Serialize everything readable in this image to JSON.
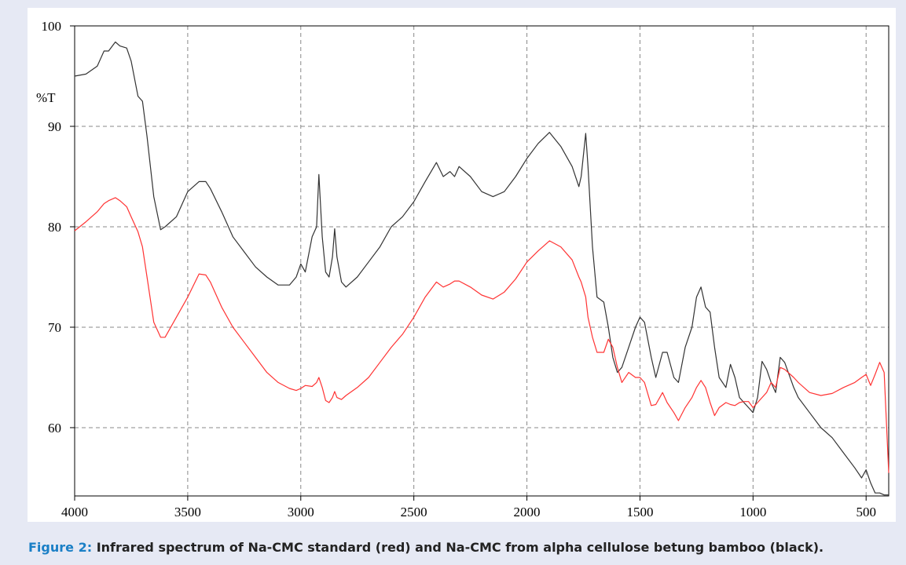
{
  "chart_data": {
    "type": "line",
    "y_label": "%T",
    "xlim": [
      4000,
      400
    ],
    "ylim": [
      53.2,
      100
    ],
    "xticks": [
      4000,
      3500,
      3000,
      2500,
      2000,
      1500,
      1000,
      500
    ],
    "yticks": [
      60,
      70,
      80,
      90,
      100
    ],
    "grid": true,
    "x": [
      4000,
      3950,
      3900,
      3870,
      3850,
      3820,
      3800,
      3770,
      3750,
      3720,
      3700,
      3680,
      3650,
      3620,
      3600,
      3550,
      3500,
      3450,
      3420,
      3400,
      3350,
      3300,
      3250,
      3200,
      3150,
      3100,
      3050,
      3020,
      3000,
      2980,
      2950,
      2930,
      2920,
      2905,
      2890,
      2875,
      2860,
      2850,
      2840,
      2820,
      2800,
      2750,
      2700,
      2650,
      2600,
      2550,
      2500,
      2450,
      2400,
      2370,
      2340,
      2320,
      2300,
      2250,
      2200,
      2150,
      2100,
      2050,
      2000,
      1950,
      1900,
      1850,
      1800,
      1770,
      1760,
      1740,
      1730,
      1710,
      1690,
      1660,
      1640,
      1620,
      1600,
      1580,
      1550,
      1520,
      1500,
      1480,
      1450,
      1430,
      1400,
      1380,
      1350,
      1330,
      1300,
      1270,
      1250,
      1230,
      1210,
      1190,
      1170,
      1150,
      1120,
      1100,
      1080,
      1060,
      1040,
      1020,
      1000,
      980,
      960,
      940,
      920,
      900,
      880,
      860,
      820,
      800,
      750,
      700,
      650,
      600,
      550,
      520,
      500,
      480,
      460,
      440,
      420,
      400
    ],
    "series": [
      {
        "color": "#333333",
        "values": [
          95,
          95.2,
          96,
          97.5,
          97.5,
          98.4,
          98,
          97.8,
          96.5,
          93,
          92.5,
          89,
          83,
          79.7,
          80,
          81,
          83.5,
          84.5,
          84.5,
          83.8,
          81.5,
          79,
          77.5,
          76,
          75,
          74.2,
          74.2,
          75,
          76.3,
          75.5,
          79,
          80,
          85.2,
          79,
          75.5,
          75,
          77,
          79.8,
          77,
          74.5,
          74,
          75,
          76.5,
          78,
          80,
          81,
          82.5,
          84.5,
          86.4,
          85,
          85.5,
          85,
          86,
          85,
          83.5,
          83,
          83.5,
          85,
          86.8,
          88.3,
          89.4,
          88,
          86,
          84,
          85,
          89.3,
          86,
          78,
          73,
          72.5,
          70,
          67,
          65.5,
          66,
          68,
          70,
          71,
          70.5,
          67,
          65,
          67.5,
          67.5,
          65,
          64.5,
          68,
          70,
          73,
          74,
          72,
          71.5,
          68,
          65,
          64,
          66.3,
          65,
          63,
          62.5,
          62,
          61.5,
          63,
          66.6,
          65.8,
          64.5,
          63.5,
          67,
          66.5,
          64,
          63,
          61.5,
          60,
          59,
          57.5,
          56,
          55,
          55.8,
          54.5,
          53.5,
          53.5,
          53.3,
          53.3
        ]
      },
      {
        "color": "#ff3333",
        "values": [
          79.6,
          80.5,
          81.5,
          82.3,
          82.6,
          82.9,
          82.6,
          82,
          81,
          79.5,
          78,
          75,
          70.5,
          69,
          69,
          71,
          73,
          75.3,
          75.2,
          74.5,
          72,
          70,
          68.5,
          67,
          65.5,
          64.5,
          63.9,
          63.7,
          63.9,
          64.2,
          64.1,
          64.5,
          65,
          64,
          62.7,
          62.5,
          63,
          63.6,
          63,
          62.8,
          63.2,
          64,
          65,
          66.5,
          68,
          69.3,
          71,
          73,
          74.5,
          74,
          74.3,
          74.6,
          74.6,
          74,
          73.2,
          72.8,
          73.5,
          74.8,
          76.5,
          77.6,
          78.6,
          78,
          76.7,
          75,
          74.5,
          73,
          71,
          69,
          67.5,
          67.5,
          68.8,
          68,
          66,
          64.5,
          65.5,
          65,
          65,
          64.5,
          62.2,
          62.3,
          63.5,
          62.5,
          61.5,
          60.7,
          62,
          63,
          64,
          64.7,
          64,
          62.5,
          61.2,
          62,
          62.5,
          62.3,
          62.2,
          62.5,
          62.6,
          62.6,
          62,
          62.5,
          63,
          63.5,
          64.5,
          64,
          66,
          65.8,
          65,
          64.5,
          63.5,
          63.2,
          63.4,
          64,
          64.5,
          65,
          65.3,
          64.2,
          65.3,
          66.5,
          65.5,
          55.5
        ]
      }
    ]
  },
  "caption": {
    "label": "Figure 2:",
    "text": "Infrared spectrum of Na-CMC standard (red) and Na-CMC from alpha cellulose betung bamboo (black)."
  }
}
